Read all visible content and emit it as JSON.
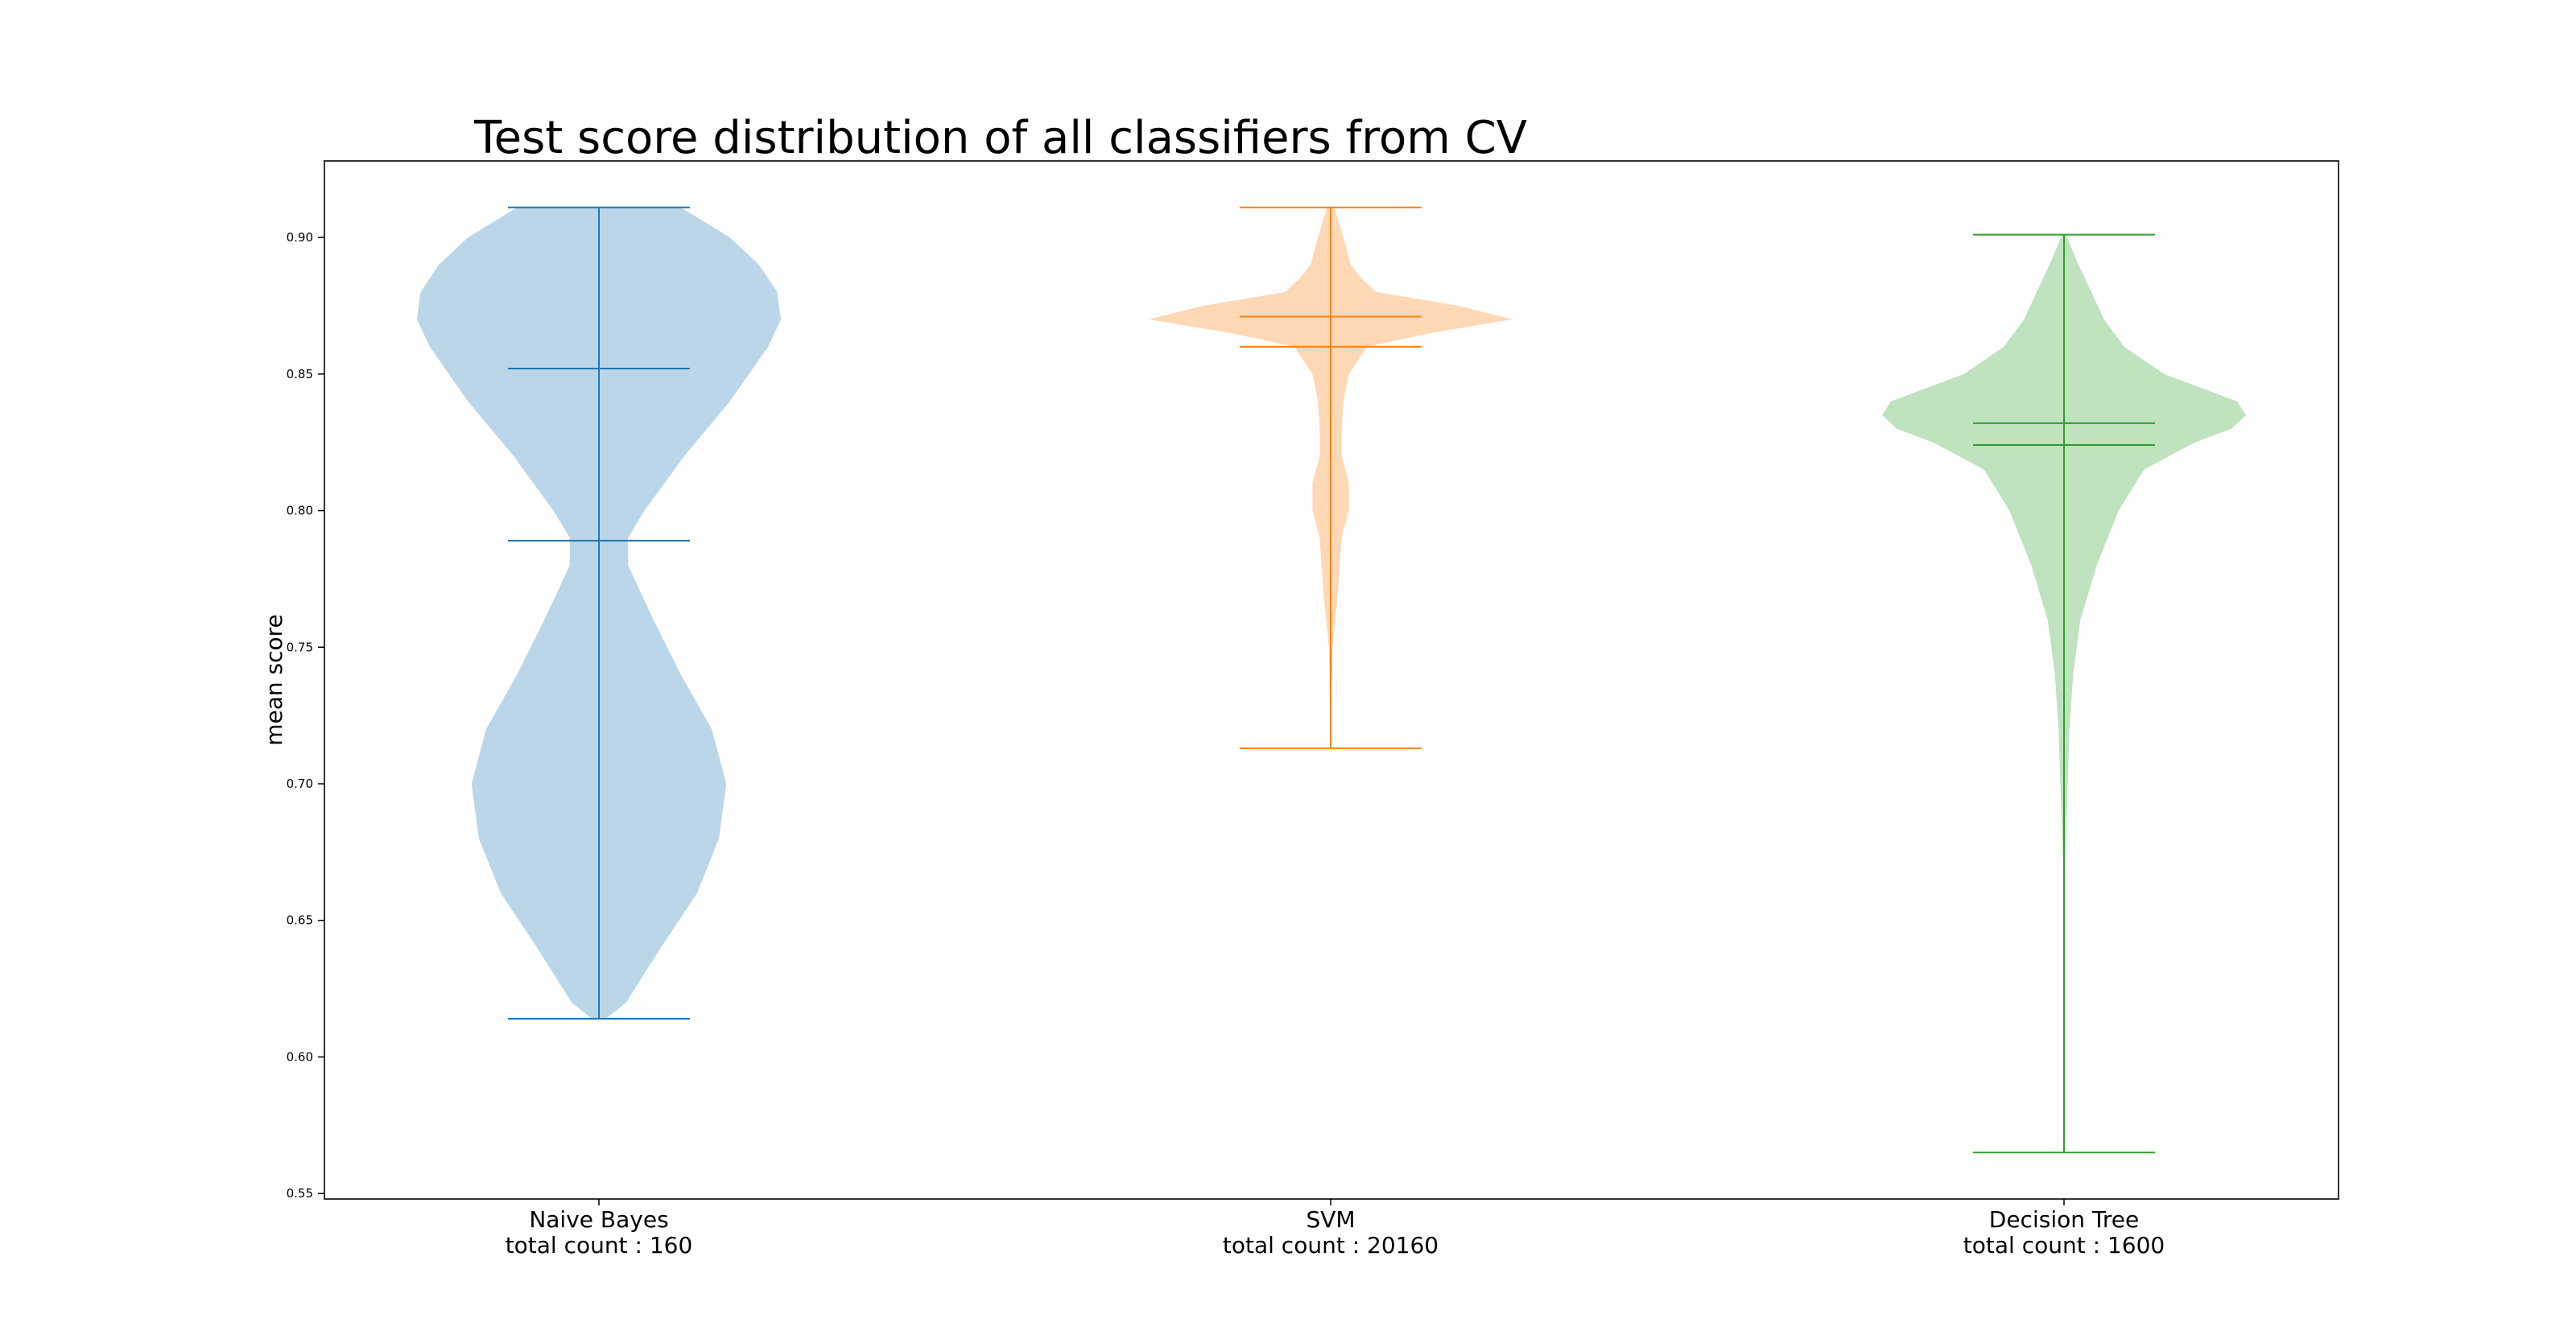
{
  "chart_data": {
    "type": "violin",
    "title": "Test score distribution of all classifiers from CV",
    "xlabel": "",
    "ylabel": "mean score",
    "ylim": [
      0.548,
      0.928
    ],
    "yticks": [
      0.55,
      0.6,
      0.65,
      0.7,
      0.75,
      0.8,
      0.85,
      0.9
    ],
    "ytick_labels": [
      "0.55",
      "0.60",
      "0.65",
      "0.70",
      "0.75",
      "0.80",
      "0.85",
      "0.90"
    ],
    "grid": false,
    "legend": "none",
    "categories": [
      {
        "name": "Naive Bayes",
        "count_label": "total count : 160"
      },
      {
        "name": "SVM",
        "count_label": "total count : 20160"
      },
      {
        "name": "Decision Tree",
        "count_label": "total count : 1600"
      }
    ],
    "series": [
      {
        "name": "Naive Bayes",
        "color": "#1f77b4",
        "fill": "#1f77b4",
        "min": 0.614,
        "max": 0.911,
        "mean": 0.789,
        "median": 0.852,
        "density": [
          [
            0.614,
            0.04
          ],
          [
            0.62,
            0.15
          ],
          [
            0.64,
            0.34
          ],
          [
            0.66,
            0.54
          ],
          [
            0.68,
            0.66
          ],
          [
            0.7,
            0.7
          ],
          [
            0.72,
            0.62
          ],
          [
            0.74,
            0.45
          ],
          [
            0.76,
            0.3
          ],
          [
            0.78,
            0.16
          ],
          [
            0.79,
            0.16
          ],
          [
            0.8,
            0.25
          ],
          [
            0.82,
            0.47
          ],
          [
            0.84,
            0.72
          ],
          [
            0.86,
            0.93
          ],
          [
            0.87,
            1.0
          ],
          [
            0.88,
            0.98
          ],
          [
            0.89,
            0.88
          ],
          [
            0.9,
            0.72
          ],
          [
            0.911,
            0.45
          ]
        ]
      },
      {
        "name": "SVM",
        "color": "#ff7f0e",
        "fill": "#ff7f0e",
        "min": 0.713,
        "max": 0.911,
        "mean": 0.86,
        "median": 0.871,
        "density": [
          [
            0.713,
            0.0
          ],
          [
            0.75,
            0.01
          ],
          [
            0.77,
            0.04
          ],
          [
            0.79,
            0.06
          ],
          [
            0.8,
            0.1
          ],
          [
            0.81,
            0.1
          ],
          [
            0.82,
            0.06
          ],
          [
            0.83,
            0.06
          ],
          [
            0.84,
            0.07
          ],
          [
            0.85,
            0.1
          ],
          [
            0.86,
            0.2
          ],
          [
            0.865,
            0.55
          ],
          [
            0.87,
            1.0
          ],
          [
            0.875,
            0.7
          ],
          [
            0.88,
            0.25
          ],
          [
            0.885,
            0.17
          ],
          [
            0.89,
            0.11
          ],
          [
            0.9,
            0.07
          ],
          [
            0.911,
            0.02
          ]
        ]
      },
      {
        "name": "Decision Tree",
        "color": "#2ca02c",
        "fill": "#2ca02c",
        "min": 0.565,
        "max": 0.901,
        "mean": 0.824,
        "median": 0.832,
        "density": [
          [
            0.565,
            0.0
          ],
          [
            0.66,
            0.0
          ],
          [
            0.68,
            0.01
          ],
          [
            0.7,
            0.02
          ],
          [
            0.72,
            0.03
          ],
          [
            0.74,
            0.05
          ],
          [
            0.76,
            0.09
          ],
          [
            0.78,
            0.18
          ],
          [
            0.8,
            0.3
          ],
          [
            0.815,
            0.44
          ],
          [
            0.825,
            0.72
          ],
          [
            0.83,
            0.92
          ],
          [
            0.835,
            1.0
          ],
          [
            0.84,
            0.95
          ],
          [
            0.85,
            0.55
          ],
          [
            0.86,
            0.33
          ],
          [
            0.87,
            0.22
          ],
          [
            0.88,
            0.15
          ],
          [
            0.89,
            0.08
          ],
          [
            0.901,
            0.01
          ]
        ]
      }
    ]
  }
}
